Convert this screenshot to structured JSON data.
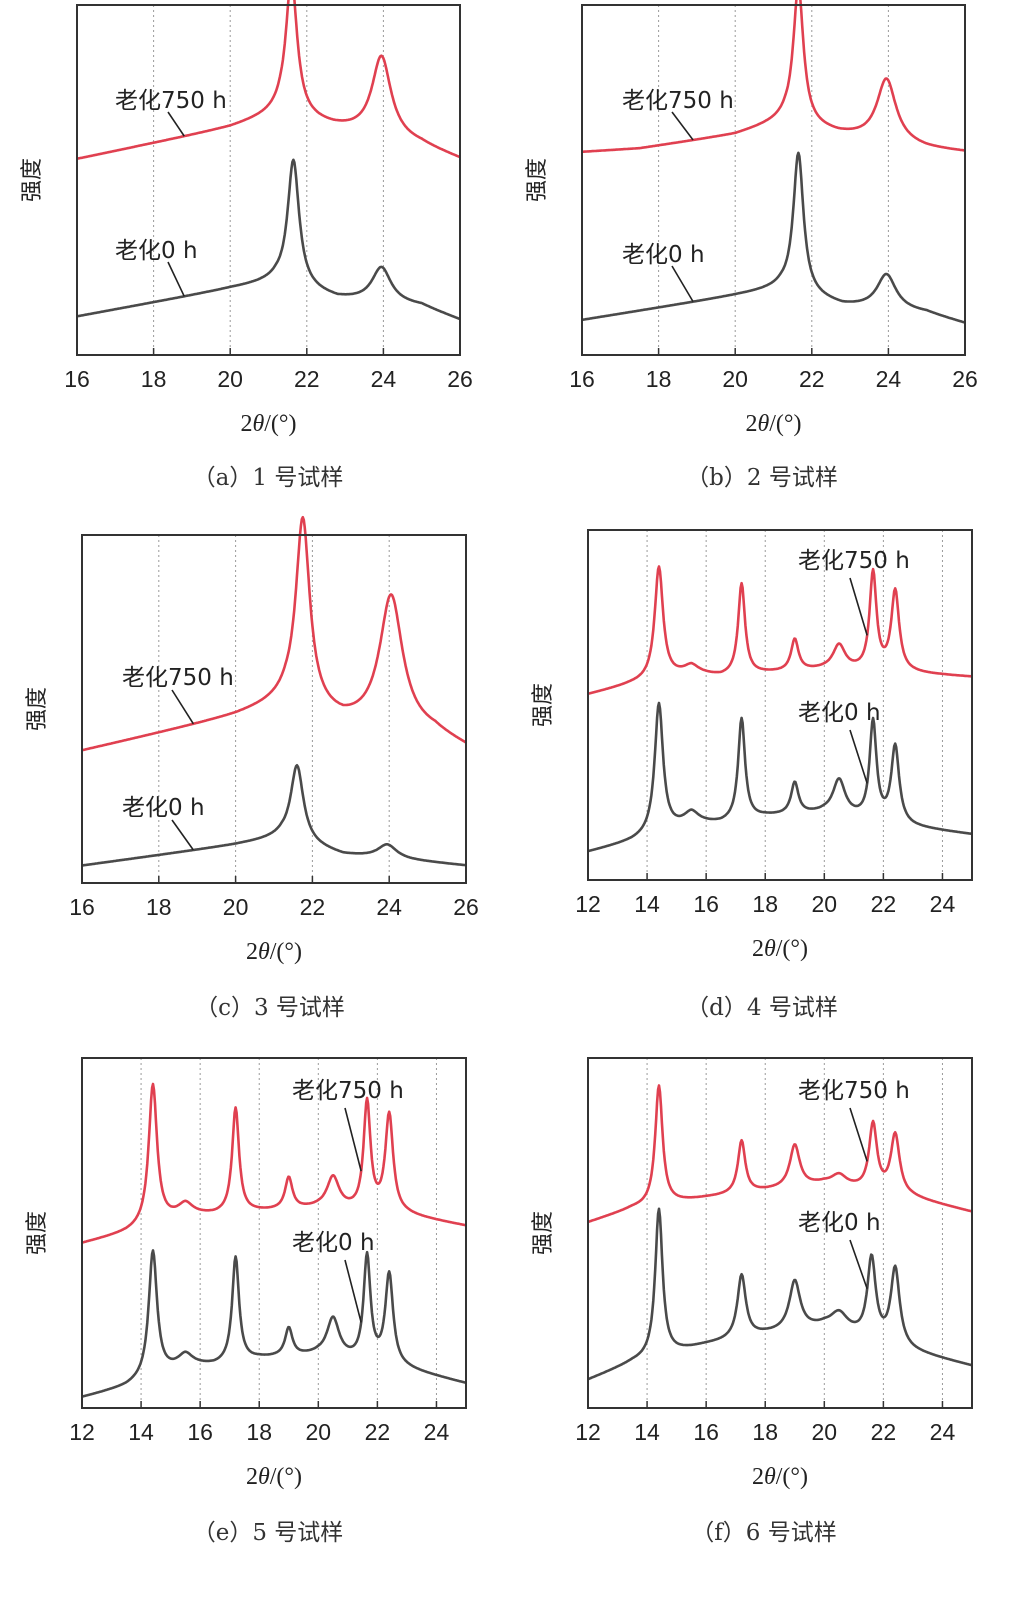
{
  "colors": {
    "aged": "#e04050",
    "fresh": "#4a4a4a",
    "grid": "#9a9a9a",
    "frame": "#333333"
  },
  "panels": [
    {
      "caption": "（a）1 号试样",
      "xlabel_prefix": "2",
      "xlabel_theta": "θ",
      "xlabel_suffix": "/(°)",
      "ylabel": "强度"
    },
    {
      "caption": "（b）2 号试样",
      "xlabel_prefix": "2",
      "xlabel_theta": "θ",
      "xlabel_suffix": "/(°)",
      "ylabel": "强度"
    },
    {
      "caption": "（c）3 号试样",
      "xlabel_prefix": "2",
      "xlabel_theta": "θ",
      "xlabel_suffix": "/(°)",
      "ylabel": "强度"
    },
    {
      "caption": "（d）4 号试样",
      "xlabel_prefix": "2",
      "xlabel_theta": "θ",
      "xlabel_suffix": "/(°)",
      "ylabel": "强度"
    },
    {
      "caption": "（e）5 号试样",
      "xlabel_prefix": "2",
      "xlabel_theta": "θ",
      "xlabel_suffix": "/(°)",
      "ylabel": "强度"
    },
    {
      "caption": "（f）6 号试样",
      "xlabel_prefix": "2",
      "xlabel_theta": "θ",
      "xlabel_suffix": "/(°)",
      "ylabel": "强度"
    }
  ],
  "chart_data": [
    {
      "type": "line",
      "xlabel": "2θ/(°)",
      "ylabel": "强度",
      "xlim": [
        16,
        26
      ],
      "ylim": [
        0,
        10
      ],
      "xticks": [
        16,
        18,
        20,
        22,
        24,
        26
      ],
      "grid": "vertical dotted",
      "legend": "none",
      "series": [
        {
          "name": "老化750 h",
          "baseline": [
            [
              16,
              5.6
            ],
            [
              20,
              6.5
            ],
            [
              21.3,
              6.9
            ],
            [
              22.7,
              6.5
            ],
            [
              25,
              6.0
            ],
            [
              26,
              5.6
            ]
          ],
          "peaks": [
            [
              21.6,
              3.9,
              0.18
            ],
            [
              23.95,
              2.3,
              0.3
            ]
          ]
        },
        {
          "name": "老化0 h",
          "baseline": [
            [
              16,
              1.1
            ],
            [
              20,
              1.9
            ],
            [
              21.2,
              2.1
            ],
            [
              22.8,
              1.6
            ],
            [
              25,
              1.4
            ],
            [
              26,
              1.0
            ]
          ],
          "peaks": [
            [
              21.65,
              3.6,
              0.18
            ],
            [
              23.95,
              1.0,
              0.3
            ]
          ]
        }
      ]
    },
    {
      "type": "line",
      "xlabel": "2θ/(°)",
      "ylabel": "强度",
      "xlim": [
        16,
        26
      ],
      "ylim": [
        0,
        10
      ],
      "xticks": [
        16,
        18,
        20,
        22,
        24,
        26
      ],
      "grid": "vertical dotted",
      "legend": "none",
      "series": [
        {
          "name": "老化750 h",
          "baseline": [
            [
              16,
              5.8
            ],
            [
              17.5,
              5.9
            ],
            [
              20,
              6.3
            ],
            [
              21.3,
              6.7
            ],
            [
              22.7,
              6.3
            ],
            [
              25,
              5.9
            ],
            [
              26,
              5.8
            ]
          ],
          "peaks": [
            [
              21.65,
              3.9,
              0.16
            ],
            [
              23.95,
              1.8,
              0.3
            ]
          ]
        },
        {
          "name": "老化0 h",
          "baseline": [
            [
              16,
              1.0
            ],
            [
              20,
              1.7
            ],
            [
              21.2,
              1.9
            ],
            [
              22.8,
              1.4
            ],
            [
              25,
              1.2
            ],
            [
              26,
              0.9
            ]
          ],
          "peaks": [
            [
              21.65,
              4.0,
              0.16
            ],
            [
              23.95,
              1.0,
              0.3
            ]
          ]
        }
      ]
    },
    {
      "type": "line",
      "xlabel": "2θ/(°)",
      "ylabel": "强度",
      "xlim": [
        16,
        26
      ],
      "ylim": [
        0,
        10
      ],
      "xticks": [
        16,
        18,
        20,
        22,
        24,
        26
      ],
      "grid": "vertical dotted",
      "legend": "none",
      "series": [
        {
          "name": "老化750 h",
          "baseline": [
            [
              16,
              3.8
            ],
            [
              20,
              4.8
            ],
            [
              21.3,
              5.2
            ],
            [
              22.8,
              4.6
            ],
            [
              25.2,
              4.3
            ],
            [
              26,
              3.9
            ]
          ],
          "peaks": [
            [
              21.75,
              5.4,
              0.22
            ],
            [
              24.05,
              3.8,
              0.36
            ]
          ]
        },
        {
          "name": "老化0 h",
          "baseline": [
            [
              16,
              0.5
            ],
            [
              20,
              1.1
            ],
            [
              21.2,
              1.3
            ],
            [
              22.8,
              0.8
            ],
            [
              25,
              0.6
            ],
            [
              26,
              0.5
            ]
          ],
          "peaks": [
            [
              21.6,
              2.2,
              0.2
            ],
            [
              23.95,
              0.4,
              0.3
            ]
          ]
        }
      ]
    },
    {
      "type": "line",
      "xlabel": "2θ/(°)",
      "ylabel": "强度",
      "xlim": [
        12,
        25
      ],
      "ylim": [
        0,
        10
      ],
      "xticks": [
        12,
        14,
        16,
        18,
        20,
        22,
        24
      ],
      "grid": "vertical dotted",
      "legend": "none",
      "series": [
        {
          "name": "老化750 h",
          "baseline": [
            [
              12,
              5.3
            ],
            [
              13.5,
              5.6
            ],
            [
              15.5,
              5.9
            ],
            [
              16.5,
              5.8
            ],
            [
              18,
              5.9
            ],
            [
              20,
              6.0
            ],
            [
              23,
              5.9
            ],
            [
              25,
              5.8
            ]
          ],
          "peaks": [
            [
              14.4,
              3.2,
              0.17
            ],
            [
              15.5,
              0.2,
              0.3
            ],
            [
              17.2,
              2.6,
              0.14
            ],
            [
              19.0,
              0.9,
              0.15
            ],
            [
              20.5,
              0.7,
              0.25
            ],
            [
              21.65,
              2.8,
              0.14
            ],
            [
              22.4,
              2.3,
              0.16
            ]
          ]
        },
        {
          "name": "老化0 h",
          "baseline": [
            [
              12,
              0.8
            ],
            [
              13.5,
              1.1
            ],
            [
              15.5,
              1.6
            ],
            [
              16.5,
              1.6
            ],
            [
              18,
              1.8
            ],
            [
              20,
              1.9
            ],
            [
              23,
              1.5
            ],
            [
              25,
              1.3
            ]
          ],
          "peaks": [
            [
              14.4,
              3.7,
              0.17
            ],
            [
              15.5,
              0.3,
              0.3
            ],
            [
              17.2,
              2.9,
              0.14
            ],
            [
              19.0,
              0.9,
              0.15
            ],
            [
              20.5,
              1.0,
              0.25
            ],
            [
              21.65,
              2.8,
              0.14
            ],
            [
              22.4,
              2.2,
              0.16
            ]
          ]
        }
      ]
    },
    {
      "type": "line",
      "xlabel": "2θ/(°)",
      "ylabel": "强度",
      "xlim": [
        12,
        25
      ],
      "ylim": [
        0,
        10
      ],
      "xticks": [
        12,
        14,
        16,
        18,
        20,
        22,
        24
      ],
      "grid": "vertical dotted",
      "legend": "none",
      "series": [
        {
          "name": "老化750 h",
          "baseline": [
            [
              12,
              4.7
            ],
            [
              13.5,
              5.0
            ],
            [
              15.5,
              5.5
            ],
            [
              16.5,
              5.5
            ],
            [
              18,
              5.6
            ],
            [
              20,
              5.7
            ],
            [
              23,
              5.5
            ],
            [
              25,
              5.2
            ]
          ],
          "peaks": [
            [
              14.4,
              4.0,
              0.17
            ],
            [
              15.5,
              0.3,
              0.3
            ],
            [
              17.2,
              3.0,
              0.14
            ],
            [
              19.0,
              0.9,
              0.15
            ],
            [
              20.5,
              0.9,
              0.25
            ],
            [
              21.65,
              3.1,
              0.14
            ],
            [
              22.4,
              2.8,
              0.16
            ]
          ]
        },
        {
          "name": "老化0 h",
          "baseline": [
            [
              12,
              0.3
            ],
            [
              13.5,
              0.6
            ],
            [
              15.5,
              1.2
            ],
            [
              16.5,
              1.2
            ],
            [
              18,
              1.4
            ],
            [
              20,
              1.5
            ],
            [
              23,
              1.1
            ],
            [
              25,
              0.7
            ]
          ],
          "peaks": [
            [
              14.4,
              3.6,
              0.17
            ],
            [
              15.5,
              0.3,
              0.3
            ],
            [
              17.2,
              3.0,
              0.14
            ],
            [
              19.0,
              0.8,
              0.15
            ],
            [
              20.5,
              1.1,
              0.25
            ],
            [
              21.65,
              3.0,
              0.14
            ],
            [
              22.4,
              2.6,
              0.16
            ]
          ]
        }
      ]
    },
    {
      "type": "line",
      "xlabel": "2θ/(°)",
      "ylabel": "强度",
      "xlim": [
        12,
        25
      ],
      "ylim": [
        0,
        10
      ],
      "xticks": [
        12,
        14,
        16,
        18,
        20,
        22,
        24
      ],
      "grid": "vertical dotted",
      "legend": "none",
      "series": [
        {
          "name": "老化750 h",
          "baseline": [
            [
              12,
              5.3
            ],
            [
              13.5,
              5.7
            ],
            [
              16,
              6.0
            ],
            [
              18,
              6.2
            ],
            [
              20,
              6.4
            ],
            [
              23,
              6.0
            ],
            [
              25,
              5.6
            ]
          ],
          "peaks": [
            [
              14.4,
              3.4,
              0.15
            ],
            [
              17.2,
              1.5,
              0.15
            ],
            [
              19.0,
              1.2,
              0.2
            ],
            [
              20.5,
              0.3,
              0.3
            ],
            [
              21.65,
              1.9,
              0.16
            ],
            [
              22.4,
              1.7,
              0.18
            ]
          ]
        },
        {
          "name": "老化0 h",
          "baseline": [
            [
              12,
              0.8
            ],
            [
              13.5,
              1.3
            ],
            [
              16,
              1.8
            ],
            [
              18,
              2.1
            ],
            [
              20,
              2.3
            ],
            [
              23,
              1.6
            ],
            [
              25,
              1.2
            ]
          ],
          "peaks": [
            [
              14.4,
              4.2,
              0.15
            ],
            [
              17.2,
              1.8,
              0.17
            ],
            [
              19.0,
              1.4,
              0.22
            ],
            [
              20.5,
              0.5,
              0.35
            ],
            [
              21.6,
              2.3,
              0.17
            ],
            [
              22.4,
              2.2,
              0.18
            ]
          ]
        }
      ]
    }
  ]
}
